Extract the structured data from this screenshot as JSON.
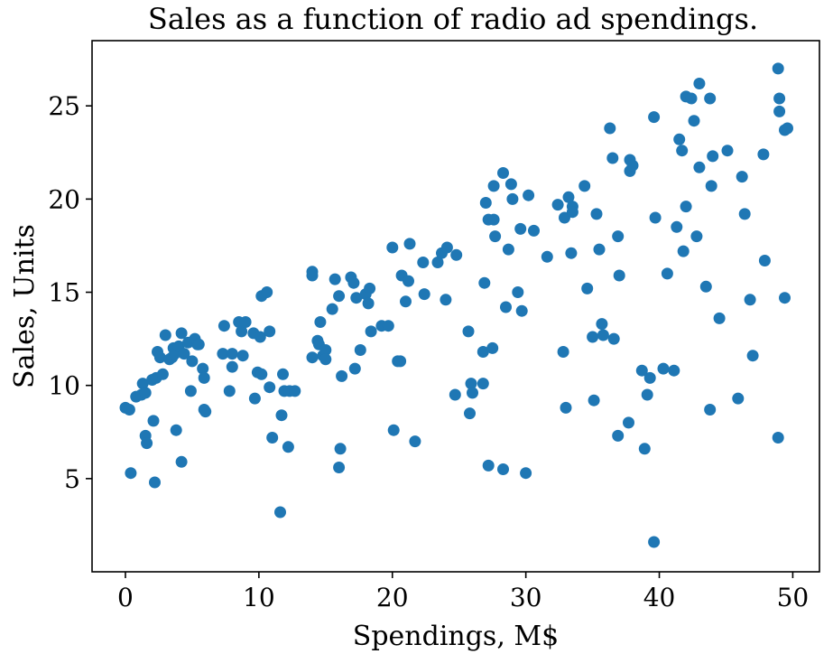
{
  "chart_data": {
    "type": "scatter",
    "title": "Sales as a function of radio ad spendings.",
    "xlabel": "Spendings, M$",
    "ylabel": "Sales, Units",
    "xlim": [
      -2.5,
      52.0
    ],
    "ylim": [
      0.0,
      28.5
    ],
    "xticks": [
      0,
      10,
      20,
      30,
      40,
      50
    ],
    "yticks": [
      5,
      10,
      15,
      20,
      25
    ],
    "grid": false,
    "marker_color": "#1f77b4",
    "points": [
      [
        0.0,
        8.8
      ],
      [
        0.3,
        8.7
      ],
      [
        0.4,
        5.3
      ],
      [
        0.8,
        9.4
      ],
      [
        1.2,
        9.5
      ],
      [
        1.3,
        10.1
      ],
      [
        1.5,
        9.6
      ],
      [
        1.5,
        7.3
      ],
      [
        1.6,
        6.9
      ],
      [
        2.0,
        10.3
      ],
      [
        2.1,
        8.1
      ],
      [
        2.2,
        4.8
      ],
      [
        2.3,
        10.4
      ],
      [
        2.4,
        11.8
      ],
      [
        2.6,
        11.5
      ],
      [
        2.8,
        10.6
      ],
      [
        3.0,
        12.7
      ],
      [
        3.3,
        11.4
      ],
      [
        3.5,
        11.5
      ],
      [
        3.6,
        12.0
      ],
      [
        3.7,
        11.7
      ],
      [
        3.8,
        7.6
      ],
      [
        4.0,
        12.1
      ],
      [
        4.2,
        12.8
      ],
      [
        4.2,
        5.9
      ],
      [
        4.4,
        11.7
      ],
      [
        4.7,
        12.3
      ],
      [
        4.9,
        9.7
      ],
      [
        5.0,
        11.3
      ],
      [
        5.2,
        12.5
      ],
      [
        5.4,
        12.2
      ],
      [
        5.5,
        12.2
      ],
      [
        5.8,
        10.9
      ],
      [
        5.9,
        10.4
      ],
      [
        5.9,
        8.7
      ],
      [
        6.0,
        8.6
      ],
      [
        7.3,
        11.7
      ],
      [
        7.4,
        13.2
      ],
      [
        7.8,
        9.7
      ],
      [
        8.0,
        11.0
      ],
      [
        8.0,
        11.7
      ],
      [
        8.5,
        13.4
      ],
      [
        8.7,
        12.9
      ],
      [
        8.8,
        11.6
      ],
      [
        9.0,
        13.4
      ],
      [
        9.6,
        12.8
      ],
      [
        9.7,
        9.3
      ],
      [
        9.9,
        10.7
      ],
      [
        10.2,
        10.6
      ],
      [
        10.1,
        12.6
      ],
      [
        10.2,
        14.8
      ],
      [
        10.6,
        15.0
      ],
      [
        10.8,
        9.9
      ],
      [
        10.8,
        12.9
      ],
      [
        11.0,
        7.2
      ],
      [
        11.6,
        3.2
      ],
      [
        11.7,
        8.4
      ],
      [
        11.8,
        10.6
      ],
      [
        11.9,
        9.7
      ],
      [
        12.2,
        6.7
      ],
      [
        12.3,
        9.7
      ],
      [
        12.7,
        9.7
      ],
      [
        14.0,
        16.1
      ],
      [
        14.0,
        15.9
      ],
      [
        14.0,
        11.5
      ],
      [
        14.4,
        12.4
      ],
      [
        14.5,
        12.2
      ],
      [
        14.6,
        13.4
      ],
      [
        14.8,
        11.6
      ],
      [
        15.0,
        11.9
      ],
      [
        15.0,
        11.4
      ],
      [
        15.5,
        14.1
      ],
      [
        15.7,
        15.7
      ],
      [
        16.0,
        14.8
      ],
      [
        16.0,
        5.6
      ],
      [
        16.1,
        6.6
      ],
      [
        16.2,
        10.5
      ],
      [
        16.9,
        15.8
      ],
      [
        17.1,
        15.5
      ],
      [
        17.2,
        10.9
      ],
      [
        17.3,
        14.7
      ],
      [
        17.6,
        11.9
      ],
      [
        18.0,
        14.9
      ],
      [
        18.2,
        14.4
      ],
      [
        18.3,
        15.2
      ],
      [
        18.4,
        12.9
      ],
      [
        19.2,
        13.2
      ],
      [
        19.7,
        13.2
      ],
      [
        20.0,
        17.4
      ],
      [
        20.1,
        7.6
      ],
      [
        20.4,
        11.3
      ],
      [
        20.6,
        11.3
      ],
      [
        20.7,
        15.9
      ],
      [
        21.0,
        14.5
      ],
      [
        21.2,
        15.6
      ],
      [
        21.3,
        17.6
      ],
      [
        21.7,
        7.0
      ],
      [
        22.3,
        16.6
      ],
      [
        22.4,
        14.9
      ],
      [
        23.4,
        16.6
      ],
      [
        23.7,
        17.1
      ],
      [
        24.0,
        14.6
      ],
      [
        24.1,
        17.4
      ],
      [
        24.7,
        9.5
      ],
      [
        24.8,
        17.0
      ],
      [
        25.7,
        12.9
      ],
      [
        25.8,
        8.5
      ],
      [
        25.9,
        10.1
      ],
      [
        26.0,
        9.6
      ],
      [
        26.8,
        10.1
      ],
      [
        26.8,
        11.8
      ],
      [
        26.9,
        15.5
      ],
      [
        27.0,
        19.8
      ],
      [
        27.2,
        18.9
      ],
      [
        27.2,
        5.7
      ],
      [
        27.5,
        12.0
      ],
      [
        27.6,
        18.9
      ],
      [
        27.6,
        20.7
      ],
      [
        27.7,
        18.0
      ],
      [
        28.3,
        21.4
      ],
      [
        28.3,
        5.5
      ],
      [
        28.5,
        14.2
      ],
      [
        28.7,
        17.3
      ],
      [
        28.9,
        20.8
      ],
      [
        29.0,
        20.0
      ],
      [
        29.4,
        15.0
      ],
      [
        29.6,
        18.4
      ],
      [
        29.7,
        14.0
      ],
      [
        30.0,
        5.3
      ],
      [
        30.2,
        20.2
      ],
      [
        30.6,
        18.3
      ],
      [
        31.6,
        16.9
      ],
      [
        32.4,
        19.7
      ],
      [
        32.8,
        11.8
      ],
      [
        32.9,
        19.0
      ],
      [
        33.0,
        8.8
      ],
      [
        33.2,
        20.1
      ],
      [
        33.4,
        17.1
      ],
      [
        33.5,
        19.6
      ],
      [
        33.5,
        19.3
      ],
      [
        34.4,
        20.7
      ],
      [
        34.6,
        15.2
      ],
      [
        35.0,
        12.6
      ],
      [
        35.1,
        9.2
      ],
      [
        35.3,
        19.2
      ],
      [
        35.5,
        17.3
      ],
      [
        35.7,
        13.3
      ],
      [
        35.8,
        12.7
      ],
      [
        36.3,
        23.8
      ],
      [
        36.5,
        22.2
      ],
      [
        36.6,
        12.5
      ],
      [
        36.9,
        18.0
      ],
      [
        36.9,
        7.3
      ],
      [
        37.0,
        15.9
      ],
      [
        37.7,
        8.0
      ],
      [
        37.8,
        21.5
      ],
      [
        37.8,
        22.1
      ],
      [
        38.0,
        21.8
      ],
      [
        38.7,
        10.8
      ],
      [
        38.9,
        6.6
      ],
      [
        39.1,
        9.5
      ],
      [
        39.3,
        10.4
      ],
      [
        39.6,
        24.4
      ],
      [
        39.7,
        19.0
      ],
      [
        39.6,
        1.6
      ],
      [
        40.3,
        10.9
      ],
      [
        40.6,
        16.0
      ],
      [
        41.1,
        10.8
      ],
      [
        41.3,
        18.5
      ],
      [
        41.5,
        23.2
      ],
      [
        41.7,
        22.6
      ],
      [
        41.8,
        17.2
      ],
      [
        42.0,
        19.6
      ],
      [
        42.0,
        25.5
      ],
      [
        42.4,
        25.4
      ],
      [
        42.6,
        24.2
      ],
      [
        42.8,
        18.0
      ],
      [
        43.0,
        26.2
      ],
      [
        43.0,
        21.7
      ],
      [
        43.5,
        15.3
      ],
      [
        43.8,
        8.7
      ],
      [
        43.8,
        25.4
      ],
      [
        43.9,
        20.7
      ],
      [
        44.0,
        22.3
      ],
      [
        44.5,
        13.6
      ],
      [
        45.1,
        22.6
      ],
      [
        45.9,
        9.3
      ],
      [
        46.2,
        21.2
      ],
      [
        46.4,
        19.2
      ],
      [
        46.8,
        14.6
      ],
      [
        47.0,
        11.6
      ],
      [
        47.8,
        22.4
      ],
      [
        47.9,
        16.7
      ],
      [
        48.9,
        27.0
      ],
      [
        48.9,
        7.2
      ],
      [
        49.0,
        25.4
      ],
      [
        49.0,
        24.7
      ],
      [
        49.4,
        23.7
      ],
      [
        49.6,
        23.8
      ],
      [
        49.4,
        14.7
      ]
    ]
  }
}
